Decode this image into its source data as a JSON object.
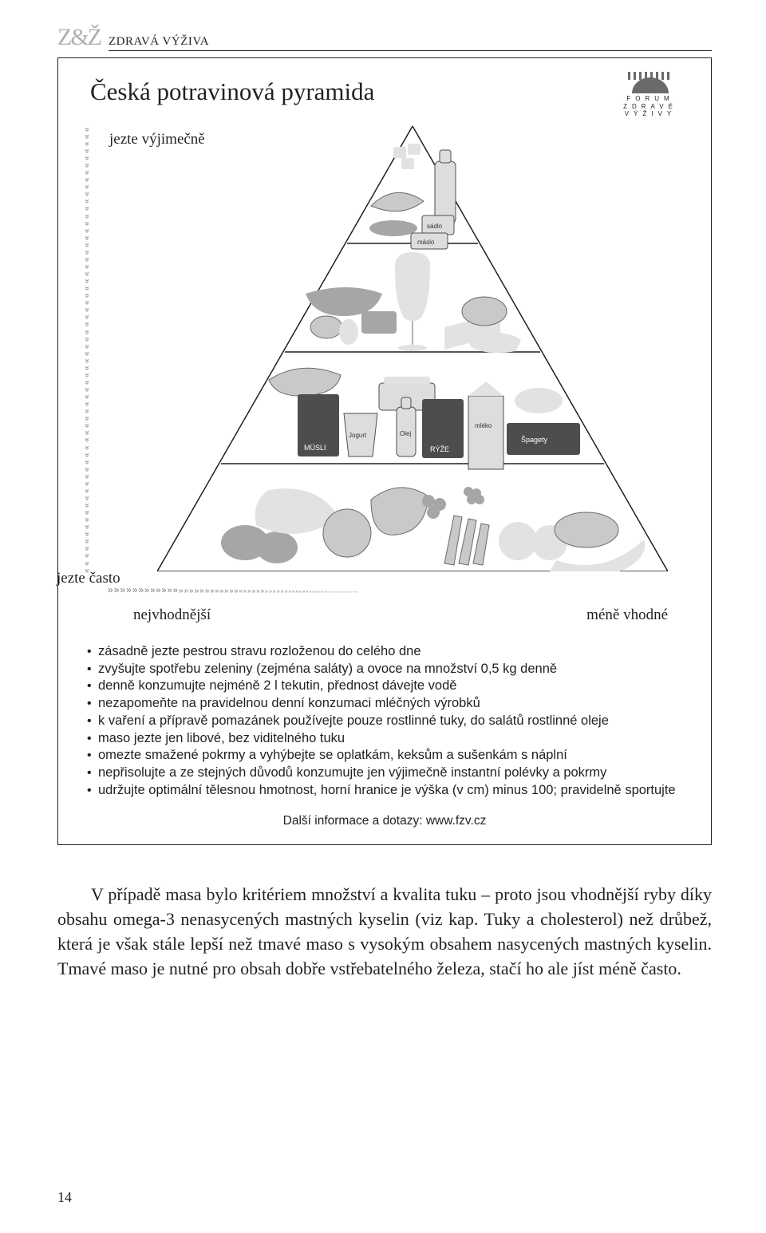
{
  "header": {
    "zz": "Z&Ž",
    "section": "ZDRAVÁ VÝŽIVA"
  },
  "pyramid": {
    "title": "Česká potravinová pyramida",
    "logo_lines": [
      "FORUM",
      "ZDRAVÉ",
      "VÝŽIVY"
    ],
    "rare_label": "jezte výjimečně",
    "often_label": "jezte často",
    "axis_best": "nejvhodnější",
    "axis_less": "méně vhodné",
    "tier_products": {
      "top": [
        "sádlo",
        "máslo"
      ],
      "t3": [
        "MÜSLI",
        "Jogurt",
        "Olej",
        "RÝŽE",
        "mléko",
        "Špagety"
      ]
    }
  },
  "bullets": [
    "zásadně jezte pestrou stravu rozloženou do celého dne",
    "zvyšujte spotřebu zeleniny (zejména saláty) a ovoce na množství 0,5 kg denně",
    "denně konzumujte nejméně 2 l tekutin, přednost dávejte vodě",
    "nezapomeňte na pravidelnou denní konzumaci mléčných výrobků",
    "k vaření a přípravě pomazánek používejte pouze rostlinné tuky, do salátů rostlinné oleje",
    "maso jezte jen libové, bez viditelného tuku",
    "omezte smažené pokrmy a vyhýbejte se oplatkám, keksům a sušenkám s náplní",
    "nepřisolujte a ze stejných důvodů konzumujte jen výjimečně instantní polévky a pokrmy",
    "udržujte optimální tělesnou hmotnost, horní hranice je výška (v cm) minus 100; pravidelně sportujte"
  ],
  "further_info": "Další informace a dotazy: www.fzv.cz",
  "body_paragraph": "V případě masa bylo kritériem množství a kvalita tuku – proto jsou vhodnější ryby díky obsahu omega-3 nenasycených mastných kyselin (viz kap. Tuky a cholesterol) než drůbež, která je však stále lepší než tmavé maso s vysokým obsahem nasycených mastných kyselin. Tmavé maso je nutné pro obsah dobře vstřebatelného železa, stačí ho ale jíst méně často.",
  "page_number": "14",
  "style": {
    "page_bg": "#ffffff",
    "text_color": "#231f20",
    "muted_color": "#b0b0b0",
    "chevron_color": "#7a7a7a",
    "border_color": "#231f20",
    "img_gray_mid": "#a6a6a6",
    "img_gray_light": "#e2e2e2",
    "img_gray_dark": "#4d4d4d"
  }
}
